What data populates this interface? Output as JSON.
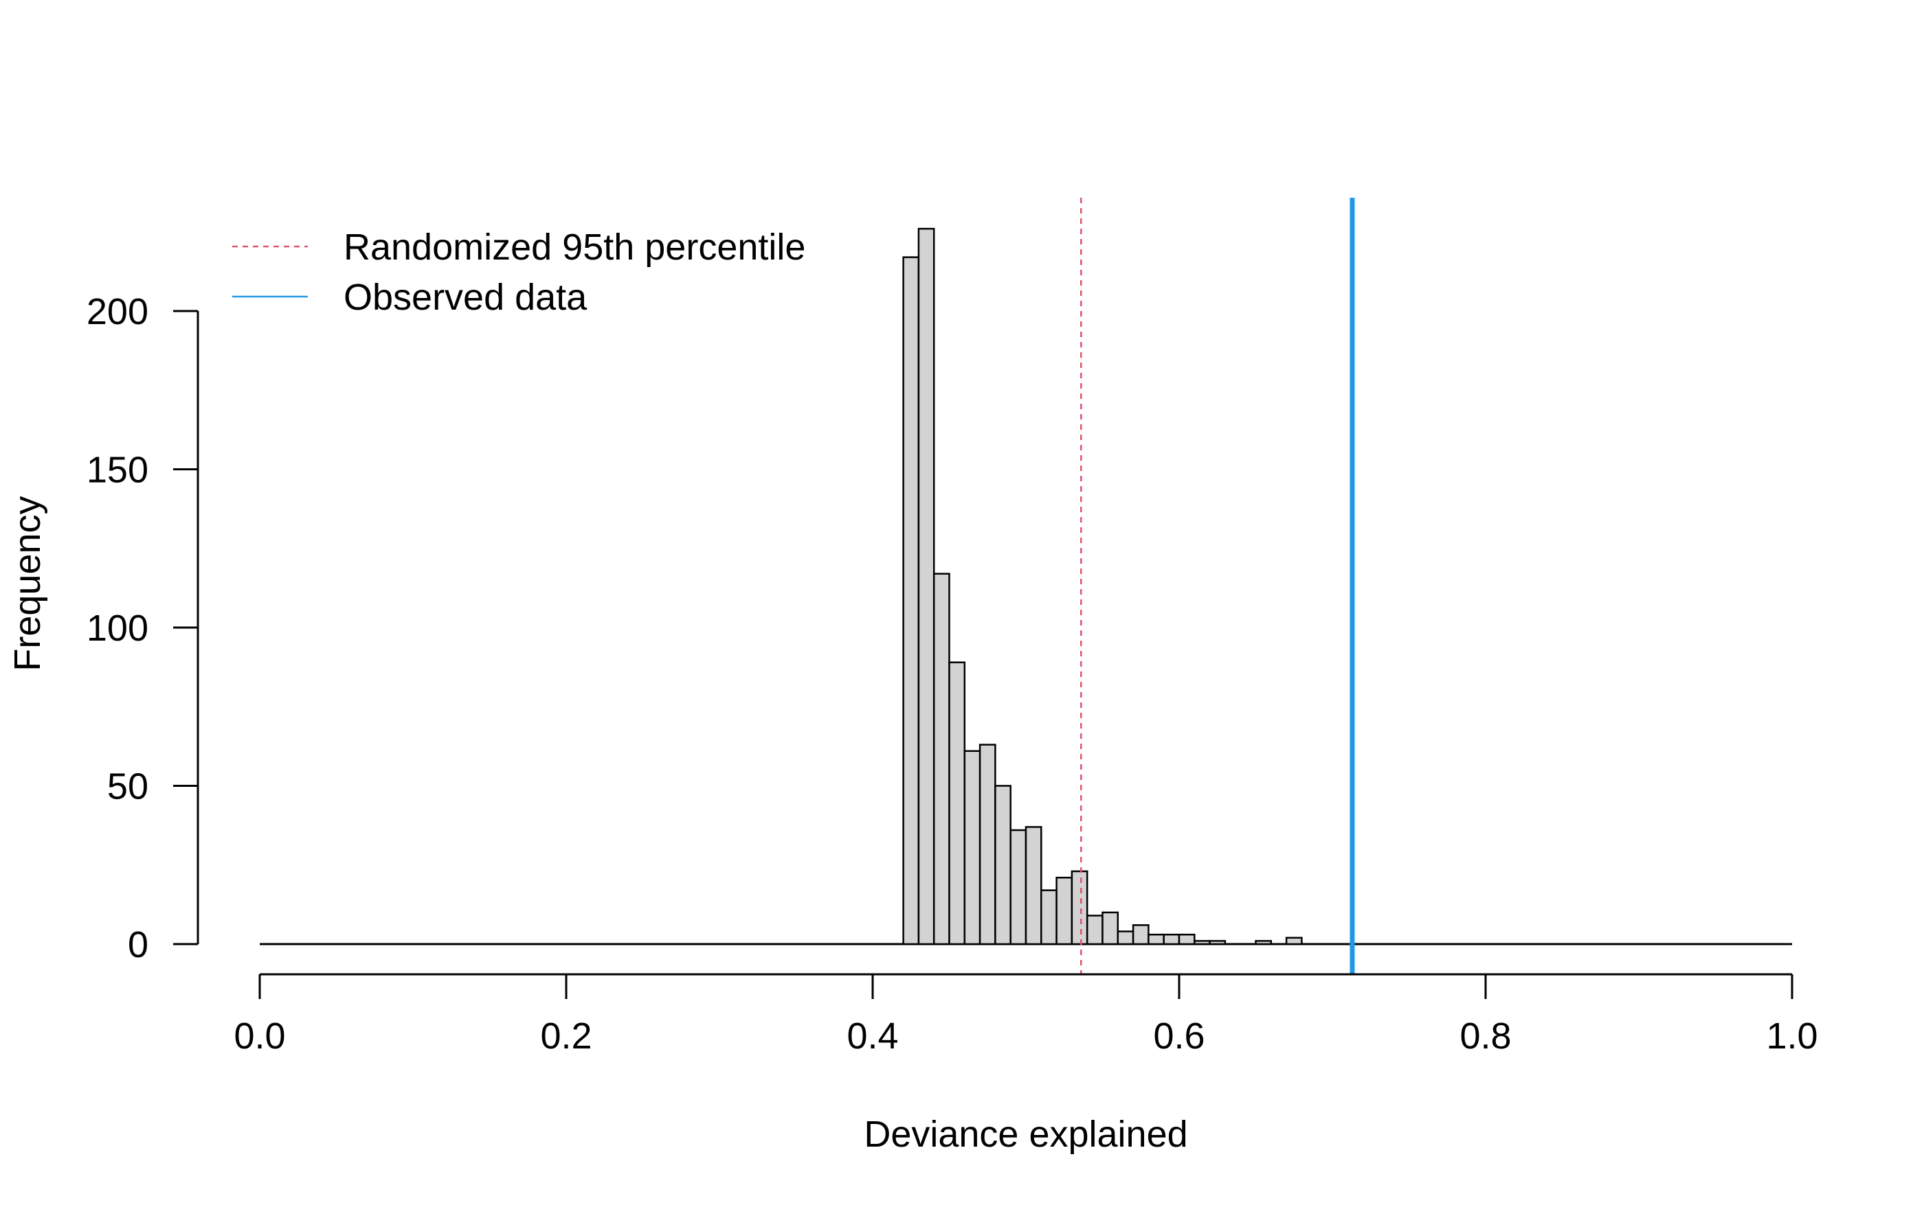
{
  "chart_data": {
    "type": "bar",
    "title": "",
    "xlabel": "Deviance explained",
    "ylabel": "Frequency",
    "xlim": [
      0,
      1
    ],
    "ylim": [
      0,
      236
    ],
    "x_ticks": [
      "0.0",
      "0.2",
      "0.4",
      "0.6",
      "0.8",
      "1.0"
    ],
    "y_ticks": [
      "0",
      "50",
      "100",
      "150",
      "200"
    ],
    "bin_width": 0.01,
    "bins": [
      {
        "x0": 0.42,
        "x1": 0.43,
        "count": 217
      },
      {
        "x0": 0.43,
        "x1": 0.44,
        "count": 226
      },
      {
        "x0": 0.44,
        "x1": 0.45,
        "count": 117
      },
      {
        "x0": 0.45,
        "x1": 0.46,
        "count": 89
      },
      {
        "x0": 0.46,
        "x1": 0.47,
        "count": 61
      },
      {
        "x0": 0.47,
        "x1": 0.48,
        "count": 63
      },
      {
        "x0": 0.48,
        "x1": 0.49,
        "count": 50
      },
      {
        "x0": 0.49,
        "x1": 0.5,
        "count": 36
      },
      {
        "x0": 0.5,
        "x1": 0.51,
        "count": 37
      },
      {
        "x0": 0.51,
        "x1": 0.52,
        "count": 17
      },
      {
        "x0": 0.52,
        "x1": 0.53,
        "count": 21
      },
      {
        "x0": 0.53,
        "x1": 0.54,
        "count": 23
      },
      {
        "x0": 0.54,
        "x1": 0.55,
        "count": 9
      },
      {
        "x0": 0.55,
        "x1": 0.56,
        "count": 10
      },
      {
        "x0": 0.56,
        "x1": 0.57,
        "count": 4
      },
      {
        "x0": 0.57,
        "x1": 0.58,
        "count": 6
      },
      {
        "x0": 0.58,
        "x1": 0.59,
        "count": 3
      },
      {
        "x0": 0.59,
        "x1": 0.6,
        "count": 3
      },
      {
        "x0": 0.6,
        "x1": 0.61,
        "count": 3
      },
      {
        "x0": 0.61,
        "x1": 0.62,
        "count": 1
      },
      {
        "x0": 0.62,
        "x1": 0.63,
        "count": 1
      },
      {
        "x0": 0.65,
        "x1": 0.66,
        "count": 1
      },
      {
        "x0": 0.67,
        "x1": 0.68,
        "count": 2
      }
    ],
    "reference_lines": [
      {
        "name": "Randomized 95th percentile",
        "x": 0.536,
        "color": "#DF536B",
        "style": "dashed"
      },
      {
        "name": "Observed data",
        "x": 0.713,
        "color": "#2297E6",
        "style": "solid"
      }
    ],
    "legend": {
      "position": "top-left",
      "entries": [
        "Randomized 95th percentile",
        "Observed data"
      ]
    },
    "bar_fill": "#D3D3D3",
    "bar_stroke": "#000000",
    "grid": false
  }
}
